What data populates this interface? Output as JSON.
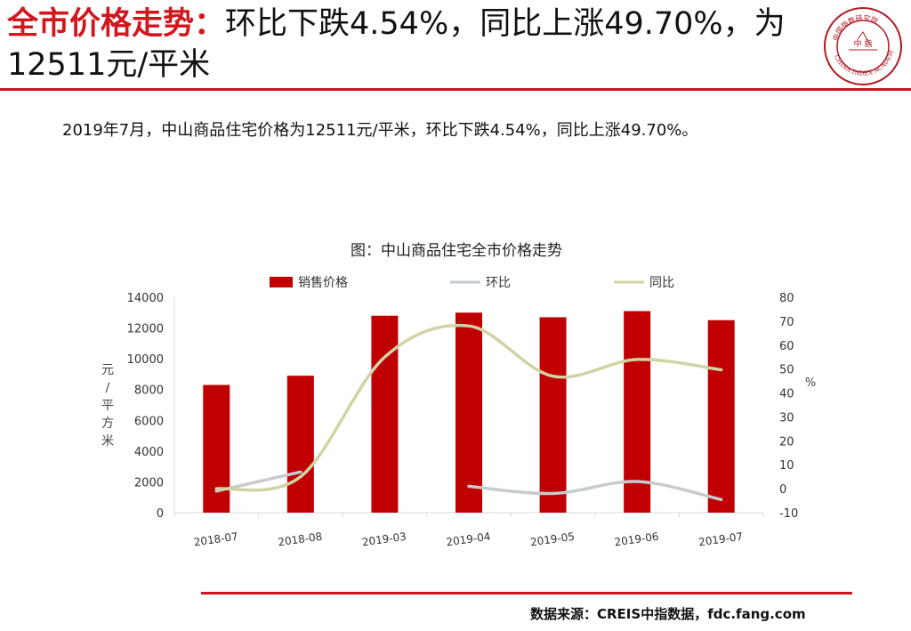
{
  "header": {
    "title_accent": "全市价格走势：",
    "title_rest": "环比下跌4.54%，同比上涨49.70%，为12511元/平米"
  },
  "logo": {
    "name": "CHINA INDEX ACADEMY",
    "center_text": "中 指",
    "ring_text": "中国指数研究院"
  },
  "summary": "2019年7月，中山商品住宅价格为12511元/平米，环比下跌4.54%，同比上涨49.70%。",
  "chart_data": {
    "type": "bar",
    "title": "图：中山商品住宅全市价格走势",
    "categories": [
      "2018-07",
      "2018-08",
      "2019-03",
      "2019-04",
      "2019-05",
      "2019-06",
      "2019-07"
    ],
    "series": [
      {
        "name": "销售价格",
        "type": "bar",
        "axis": "left",
        "color": "#c00000",
        "values": [
          8300,
          8900,
          12800,
          13000,
          12700,
          13100,
          12511
        ]
      },
      {
        "name": "环比",
        "type": "line",
        "axis": "right",
        "color": "#c6cbcf",
        "values": [
          -1,
          7,
          null,
          1,
          -2,
          3,
          -4.54
        ]
      },
      {
        "name": "同比",
        "type": "line",
        "axis": "right",
        "color": "#d1d3a4",
        "values": [
          0,
          5,
          55,
          68,
          47,
          54,
          49.7
        ]
      }
    ],
    "ylabel": "元/平方米",
    "y2label": "%",
    "ylim": [
      0,
      14000
    ],
    "y2lim": [
      -10,
      80
    ],
    "yticks": [
      "0",
      "2000",
      "4000",
      "6000",
      "8000",
      "10000",
      "12000",
      "14000"
    ],
    "y2ticks": [
      "-10",
      "0",
      "10",
      "20",
      "30",
      "40",
      "50",
      "60",
      "70",
      "80"
    ],
    "legend_position": "top",
    "grid": false
  },
  "footer": {
    "source": "数据来源：CREIS中指数据，fdc.fang.com"
  }
}
